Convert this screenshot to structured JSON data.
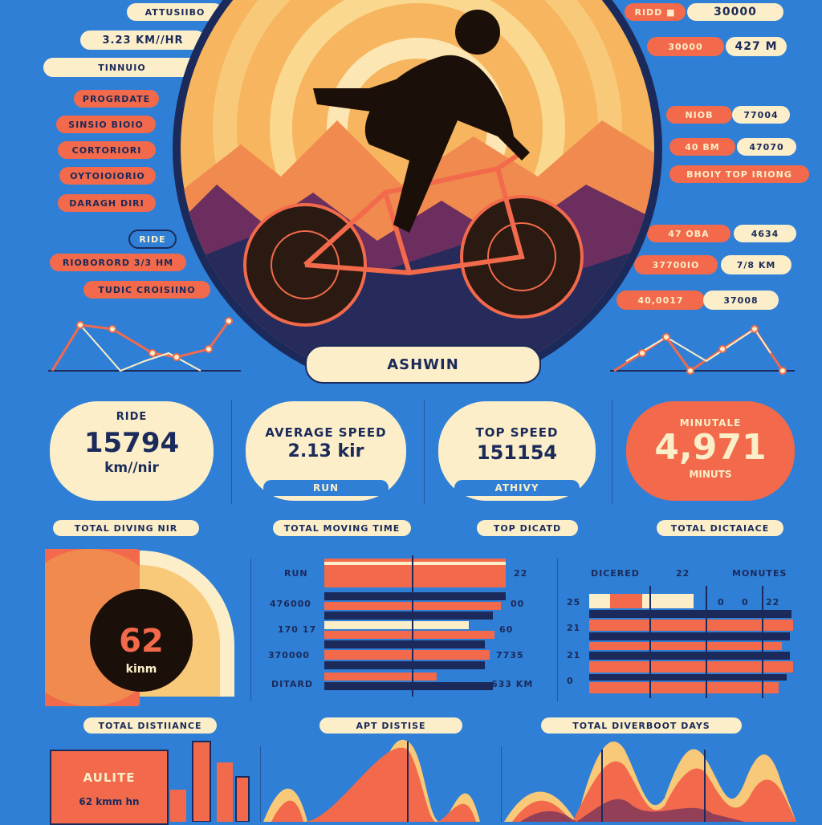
{
  "colors": {
    "background": "#2f7fd6",
    "cream": "#fbeec8",
    "coral": "#f26a4b",
    "navy": "#1b2a5a",
    "orange": "#f6a14a"
  },
  "left_labels": [
    "ATTUSIIBO",
    "3.23 KM//HR",
    "TINNUIO",
    "PROGRDATE",
    "SINSIO BIOIO",
    "CORTORIORI",
    "OYTOIOIORIO",
    "DARAGH DIRI",
    "RIDE",
    "RIOBORORD 3/3 HM",
    "TUDIC CROISIINO"
  ],
  "right_labels": [
    "RIDD ■",
    "30000",
    "30000",
    "427 M",
    "NIOB",
    "77004",
    "40 BM",
    "47070",
    "BHOIY TOP IRIONG",
    "47 OBA",
    "4634",
    "37700IO",
    "7/8 KM",
    "40,0017",
    "37008"
  ],
  "athlete_name": "ASHWIN",
  "stats": {
    "ride": {
      "title": "RIDE",
      "value": "15794",
      "unit": "km//nir",
      "caption": "TOTAL DIVING NIR"
    },
    "avg": {
      "title": "AVERAGE SPEED",
      "value": "2.13 kir",
      "tag": "RUN",
      "caption": "TOTAL MOVING TIME"
    },
    "top": {
      "title": "TOP SPEED",
      "value": "151154",
      "tag": "ATHIVY",
      "caption": "TOP DICATD"
    },
    "minutes": {
      "title": "MINUTALE",
      "value": "4,971",
      "unit": "MINUTS",
      "caption": "TOTAL DICTAIACE"
    }
  },
  "gauge": {
    "value": "62",
    "unit": "kinm",
    "fill": 0.62,
    "caption": "TOTAL DISTIIANCE"
  },
  "bars_mid": {
    "labels": [
      "RUN",
      "476000",
      "170 17",
      "370000",
      "DITARD"
    ],
    "values": [
      "22",
      "00",
      "60",
      "7735",
      "633 KM"
    ],
    "caption": "APT DISTISE"
  },
  "bars_right": {
    "header": [
      "DICERED",
      "22",
      "MONUTES"
    ],
    "ticks": [
      "0",
      "0",
      "22"
    ],
    "row_labels": [
      "25",
      "21",
      "21",
      "0"
    ],
    "caption": "TOTAL DIVERBOOT DAYS"
  },
  "bottom_card": {
    "title": "AULITE",
    "value": "62 kmm hn"
  }
}
